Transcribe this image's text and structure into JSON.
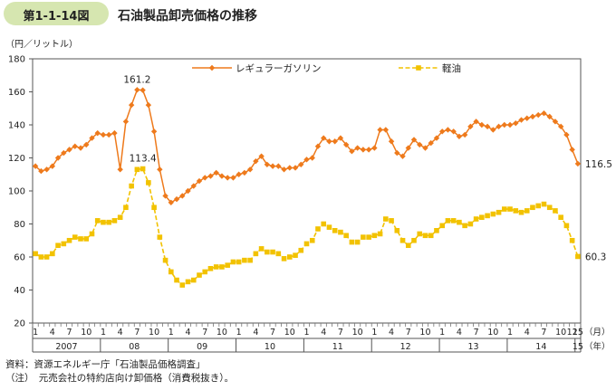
{
  "figure": {
    "number": "第1-1-14図",
    "title": "石油製品卸売価格の推移"
  },
  "notes": {
    "source": "資料：資源エネルギー庁「石油製品価格調査」",
    "note": "（注）　元売会社の特約店向け卸価格（消費税抜き）。"
  },
  "chart_data": {
    "type": "line",
    "ylabel": "（円／リットル）",
    "ylim": [
      20,
      180
    ],
    "yticks": [
      20,
      40,
      60,
      80,
      100,
      120,
      140,
      160,
      180
    ],
    "x_month_ticks": [
      "1",
      "4",
      "7",
      "10",
      "1",
      "4",
      "7",
      "10",
      "1",
      "4",
      "7",
      "10",
      "1",
      "4",
      "7",
      "10",
      "1",
      "4",
      "7",
      "10",
      "1",
      "4",
      "7",
      "10",
      "1",
      "4",
      "7",
      "10",
      "1",
      "4",
      "7",
      "10",
      "12",
      "15"
    ],
    "x_unit_month": "（月）",
    "x_unit_year": "（年）",
    "years": [
      "2007",
      "08",
      "09",
      "10",
      "11",
      "12",
      "13",
      "14",
      "15"
    ],
    "x": [
      "2007-01",
      "2007-02",
      "2007-03",
      "2007-04",
      "2007-05",
      "2007-06",
      "2007-07",
      "2007-08",
      "2007-09",
      "2007-10",
      "2007-11",
      "2007-12",
      "2008-01",
      "2008-02",
      "2008-03",
      "2008-04",
      "2008-05",
      "2008-06",
      "2008-07",
      "2008-08",
      "2008-09",
      "2008-10",
      "2008-11",
      "2008-12",
      "2009-01",
      "2009-02",
      "2009-03",
      "2009-04",
      "2009-05",
      "2009-06",
      "2009-07",
      "2009-08",
      "2009-09",
      "2009-10",
      "2009-11",
      "2009-12",
      "2010-01",
      "2010-02",
      "2010-03",
      "2010-04",
      "2010-05",
      "2010-06",
      "2010-07",
      "2010-08",
      "2010-09",
      "2010-10",
      "2010-11",
      "2010-12",
      "2011-01",
      "2011-02",
      "2011-03",
      "2011-04",
      "2011-05",
      "2011-06",
      "2011-07",
      "2011-08",
      "2011-09",
      "2011-10",
      "2011-11",
      "2011-12",
      "2012-01",
      "2012-02",
      "2012-03",
      "2012-04",
      "2012-05",
      "2012-06",
      "2012-07",
      "2012-08",
      "2012-09",
      "2012-10",
      "2012-11",
      "2012-12",
      "2013-01",
      "2013-02",
      "2013-03",
      "2013-04",
      "2013-05",
      "2013-06",
      "2013-07",
      "2013-08",
      "2013-09",
      "2013-10",
      "2013-11",
      "2013-12",
      "2014-01",
      "2014-02",
      "2014-03",
      "2014-04",
      "2014-05",
      "2014-06",
      "2014-07",
      "2014-08",
      "2014-09",
      "2014-10",
      "2014-11",
      "2014-12",
      "2015-01"
    ],
    "series": [
      {
        "name": "レギュラーガソリン",
        "color": "#ee7a1c",
        "marker": "diamond",
        "end_label": "116.5",
        "peak_label": "161.2",
        "values": [
          115,
          112,
          113,
          115,
          120,
          123,
          125,
          127,
          126,
          128,
          132,
          135,
          134,
          134,
          135,
          113,
          142,
          152,
          161.2,
          161,
          152,
          136,
          113,
          97,
          93,
          95,
          97,
          100,
          103,
          106,
          108,
          109,
          111,
          109,
          108,
          108,
          110,
          111,
          113,
          118,
          121,
          116,
          115,
          115,
          113,
          114,
          114,
          116,
          119,
          120,
          127,
          132,
          130,
          130,
          132,
          128,
          124,
          126,
          125,
          125,
          126,
          137,
          137,
          130,
          123,
          121,
          126,
          131,
          128,
          126,
          129,
          132,
          136,
          137,
          136,
          133,
          134,
          139,
          142,
          140,
          139,
          137,
          139,
          140,
          140,
          141,
          143,
          144,
          145,
          146,
          147,
          145,
          142,
          139,
          134,
          125,
          116.5
        ]
      },
      {
        "name": "軽油",
        "color": "#f2c200",
        "marker": "square",
        "end_label": "60.3",
        "peak_label": "113.4",
        "values": [
          62,
          60,
          60,
          62,
          67,
          68,
          70,
          72,
          71,
          71,
          74,
          82,
          81,
          81,
          82,
          84,
          90,
          103,
          113,
          113.4,
          105,
          90,
          72,
          58,
          51,
          46,
          43,
          45,
          46,
          49,
          51,
          53,
          54,
          54,
          55,
          57,
          57,
          58,
          58,
          62,
          65,
          63,
          63,
          62,
          59,
          60,
          61,
          64,
          68,
          70,
          77,
          80,
          78,
          76,
          75,
          73,
          69,
          69,
          72,
          72,
          73,
          74,
          83,
          82,
          76,
          70,
          67,
          70,
          74,
          73,
          73,
          76,
          79,
          82,
          82,
          81,
          79,
          80,
          83,
          84,
          85,
          86,
          87,
          89,
          89,
          88,
          87,
          88,
          90,
          91,
          92,
          90,
          88,
          84,
          79,
          70,
          60.3
        ]
      }
    ],
    "legend_placement": "top",
    "grid": false
  }
}
